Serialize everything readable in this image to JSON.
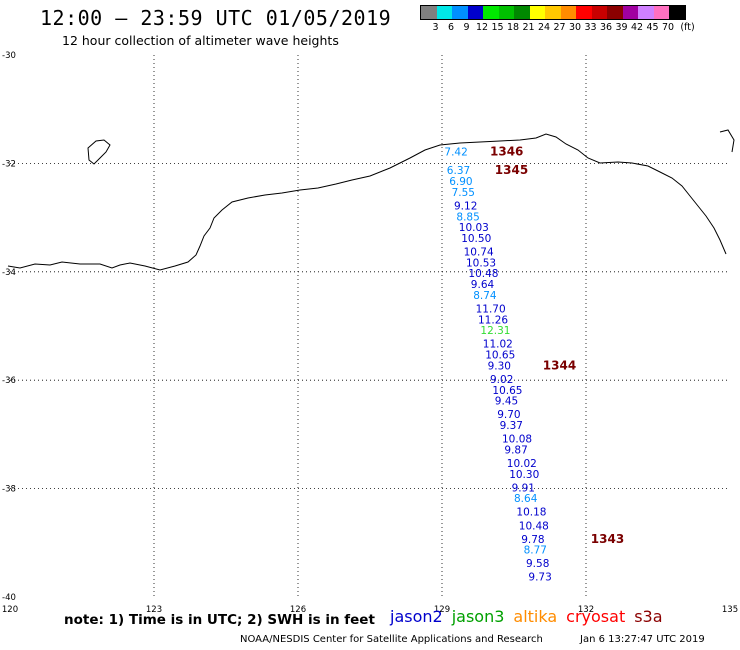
{
  "header": {
    "title": "12:00 – 23:59 UTC 01/05/2019",
    "subtitle": "12 hour collection of altimeter wave heights"
  },
  "legend": {
    "unit": "(ft)",
    "bins": [
      {
        "label": "3",
        "color": "#808080"
      },
      {
        "label": "6",
        "color": "#00e8e8"
      },
      {
        "label": "9",
        "color": "#0090ff"
      },
      {
        "label": "12",
        "color": "#0000cc"
      },
      {
        "label": "15",
        "color": "#00e800"
      },
      {
        "label": "18",
        "color": "#00c000"
      },
      {
        "label": "21",
        "color": "#008800"
      },
      {
        "label": "24",
        "color": "#ffff00"
      },
      {
        "label": "27",
        "color": "#ffc800"
      },
      {
        "label": "30",
        "color": "#ff8c00"
      },
      {
        "label": "33",
        "color": "#ff0000"
      },
      {
        "label": "36",
        "color": "#c80000"
      },
      {
        "label": "39",
        "color": "#8b0000"
      },
      {
        "label": "42",
        "color": "#a000a0"
      },
      {
        "label": "45",
        "color": "#d080ff"
      },
      {
        "label": "70",
        "color": "#ff70c0"
      },
      {
        "label": "",
        "color": "#000000"
      }
    ]
  },
  "map": {
    "lat_range": [
      -40,
      -30
    ],
    "lon_range": [
      120,
      135
    ],
    "lat_ticks": [
      "-30",
      "-32",
      "-34",
      "-36",
      "-38",
      "-40"
    ],
    "lon_ticks": [
      "120",
      "123",
      "126",
      "129",
      "132",
      "135"
    ],
    "pass_times": [
      {
        "label": "1346",
        "lat": -31.85,
        "lon": 130.0
      },
      {
        "label": "1345",
        "lat": -32.2,
        "lon": 130.1
      },
      {
        "label": "1344",
        "lat": -35.8,
        "lon": 131.1
      },
      {
        "label": "1343",
        "lat": -39.0,
        "lon": 132.1
      }
    ],
    "observations": [
      {
        "value": "7.42",
        "lat": -31.85,
        "lon": 129.05,
        "color": "#0090ff"
      },
      {
        "value": "6.37",
        "lat": -32.2,
        "lon": 129.1,
        "color": "#0090ff"
      },
      {
        "value": "6.90",
        "lat": -32.4,
        "lon": 129.15,
        "color": "#0090ff"
      },
      {
        "value": "7.55",
        "lat": -32.6,
        "lon": 129.2,
        "color": "#0090ff"
      },
      {
        "value": "9.12",
        "lat": -32.85,
        "lon": 129.25,
        "color": "#0000cc"
      },
      {
        "value": "8.85",
        "lat": -33.05,
        "lon": 129.3,
        "color": "#0090ff"
      },
      {
        "value": "10.03",
        "lat": -33.25,
        "lon": 129.35,
        "color": "#0000cc"
      },
      {
        "value": "10.50",
        "lat": -33.45,
        "lon": 129.4,
        "color": "#0000cc"
      },
      {
        "value": "10.74",
        "lat": -33.7,
        "lon": 129.45,
        "color": "#0000cc"
      },
      {
        "value": "10.53",
        "lat": -33.9,
        "lon": 129.5,
        "color": "#0000cc"
      },
      {
        "value": "10.48",
        "lat": -34.1,
        "lon": 129.55,
        "color": "#0000cc"
      },
      {
        "value": "9.64",
        "lat": -34.3,
        "lon": 129.6,
        "color": "#0000cc"
      },
      {
        "value": "8.74",
        "lat": -34.5,
        "lon": 129.65,
        "color": "#0090ff"
      },
      {
        "value": "11.70",
        "lat": -34.75,
        "lon": 129.7,
        "color": "#0000cc"
      },
      {
        "value": "11.26",
        "lat": -34.95,
        "lon": 129.75,
        "color": "#0000cc"
      },
      {
        "value": "12.31",
        "lat": -35.15,
        "lon": 129.8,
        "color": "#33dd33"
      },
      {
        "value": "11.02",
        "lat": -35.4,
        "lon": 129.85,
        "color": "#0000cc"
      },
      {
        "value": "10.65",
        "lat": -35.6,
        "lon": 129.9,
        "color": "#0000cc"
      },
      {
        "value": "9.30",
        "lat": -35.8,
        "lon": 129.95,
        "color": "#0000cc"
      },
      {
        "value": "9.02",
        "lat": -36.05,
        "lon": 130.0,
        "color": "#0000cc"
      },
      {
        "value": "10.65",
        "lat": -36.25,
        "lon": 130.05,
        "color": "#0000cc"
      },
      {
        "value": "9.45",
        "lat": -36.45,
        "lon": 130.1,
        "color": "#0000cc"
      },
      {
        "value": "9.70",
        "lat": -36.7,
        "lon": 130.15,
        "color": "#0000cc"
      },
      {
        "value": "9.37",
        "lat": -36.9,
        "lon": 130.2,
        "color": "#0000cc"
      },
      {
        "value": "10.08",
        "lat": -37.15,
        "lon": 130.25,
        "color": "#0000cc"
      },
      {
        "value": "9.87",
        "lat": -37.35,
        "lon": 130.3,
        "color": "#0000cc"
      },
      {
        "value": "10.02",
        "lat": -37.6,
        "lon": 130.35,
        "color": "#0000cc"
      },
      {
        "value": "10.30",
        "lat": -37.8,
        "lon": 130.4,
        "color": "#0000cc"
      },
      {
        "value": "9.91",
        "lat": -38.05,
        "lon": 130.45,
        "color": "#0000cc"
      },
      {
        "value": "8.64",
        "lat": -38.25,
        "lon": 130.5,
        "color": "#0090ff"
      },
      {
        "value": "10.18",
        "lat": -38.5,
        "lon": 130.55,
        "color": "#0000cc"
      },
      {
        "value": "10.48",
        "lat": -38.75,
        "lon": 130.6,
        "color": "#0000cc"
      },
      {
        "value": "9.78",
        "lat": -39.0,
        "lon": 130.65,
        "color": "#0000cc"
      },
      {
        "value": "8.77",
        "lat": -39.2,
        "lon": 130.7,
        "color": "#0090ff"
      },
      {
        "value": "9.58",
        "lat": -39.45,
        "lon": 130.75,
        "color": "#0000cc"
      },
      {
        "value": "9.73",
        "lat": -39.7,
        "lon": 130.8,
        "color": "#0000cc"
      }
    ]
  },
  "footer": {
    "note": "note:  1) Time is in UTC; 2) SWH is in feet",
    "satellites": [
      {
        "name": "jason2",
        "color": "#0000cc"
      },
      {
        "name": "jason3",
        "color": "#00a000"
      },
      {
        "name": "altika",
        "color": "#ff8c00"
      },
      {
        "name": "cryosat",
        "color": "#ff0000"
      },
      {
        "name": "s3a",
        "color": "#8b0000"
      }
    ],
    "credit": "NOAA/NESDIS Center for Satellite Applications and Research",
    "timestamp": "Jan  6 13:27:47 UTC 2019"
  }
}
